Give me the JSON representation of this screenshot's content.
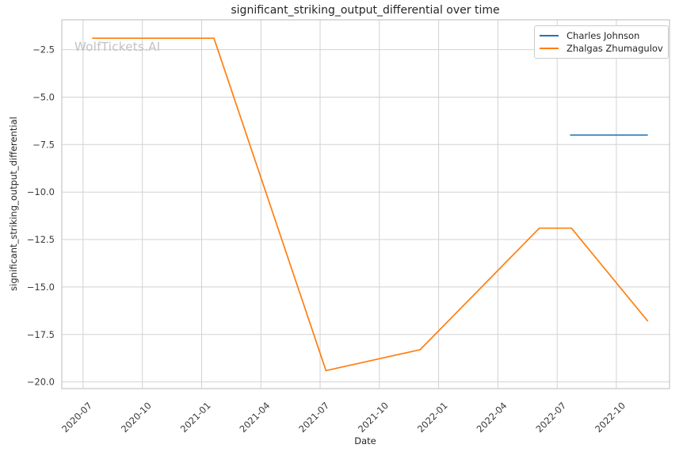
{
  "watermark": "WolfTickets.AI",
  "colors": {
    "grid": "#d2d2d2",
    "spine": "#c6c6c6",
    "text": "#3a3a3a",
    "blue": "#1f77b4",
    "orange": "#ff7f0e"
  },
  "chart_data": {
    "type": "line",
    "title": "significant_striking_output_differential over time",
    "xlabel": "Date",
    "ylabel": "significant_striking_output_differential",
    "grid": true,
    "legend_position": "upper right",
    "x_ticks": [
      "2020-07",
      "2020-10",
      "2021-01",
      "2021-04",
      "2021-07",
      "2021-10",
      "2022-01",
      "2022-04",
      "2022-07",
      "2022-10"
    ],
    "y_ticks": [
      -2.5,
      -5.0,
      -7.5,
      -10.0,
      -12.5,
      -15.0,
      -17.5,
      -20.0
    ],
    "xlim": [
      "2020-05-29",
      "2022-12-22"
    ],
    "ylim": [
      -20.35,
      -0.93
    ],
    "series": [
      {
        "name": "Charles Johnson",
        "color": "#1f77b4",
        "points": [
          [
            "2022-07-21",
            -7.0
          ],
          [
            "2022-11-19",
            -7.0
          ]
        ]
      },
      {
        "name": "Zhalgas Zhumagulov",
        "color": "#ff7f0e",
        "points": [
          [
            "2020-07-15",
            -1.9
          ],
          [
            "2021-01-20",
            -1.9
          ],
          [
            "2021-07-10",
            -19.4
          ],
          [
            "2021-12-03",
            -18.3
          ],
          [
            "2022-06-04",
            -11.9
          ],
          [
            "2022-07-23",
            -11.9
          ],
          [
            "2022-11-19",
            -16.8
          ]
        ]
      }
    ]
  }
}
